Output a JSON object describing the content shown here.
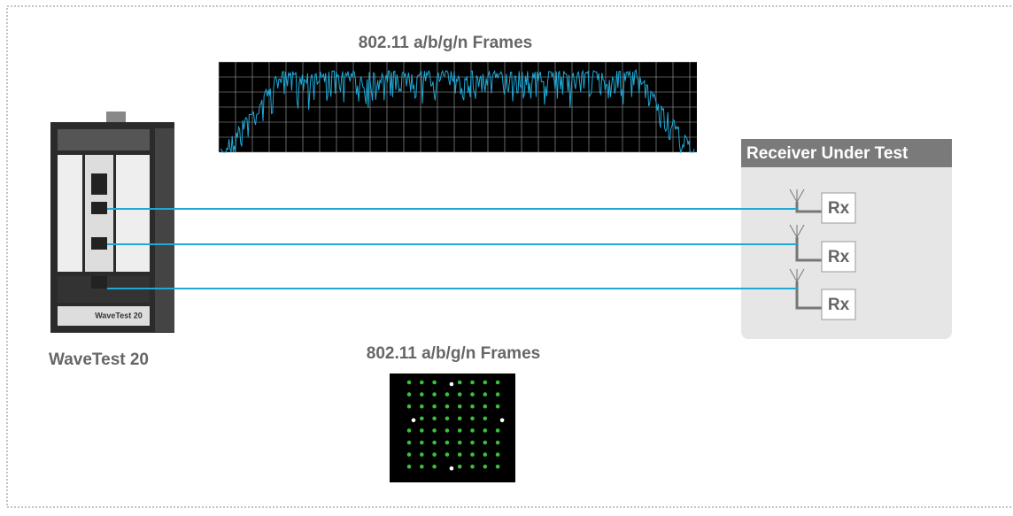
{
  "spectrum": {
    "title": "802.11 a/b/g/n Frames"
  },
  "device": {
    "label": "WaveTest 20",
    "badge": "WaveTest 20"
  },
  "receiver": {
    "title": "Receiver Under Test",
    "rx": [
      "Rx",
      "Rx",
      "Rx"
    ]
  },
  "constellation": {
    "title": "802.11 a/b/g/n Frames"
  }
}
